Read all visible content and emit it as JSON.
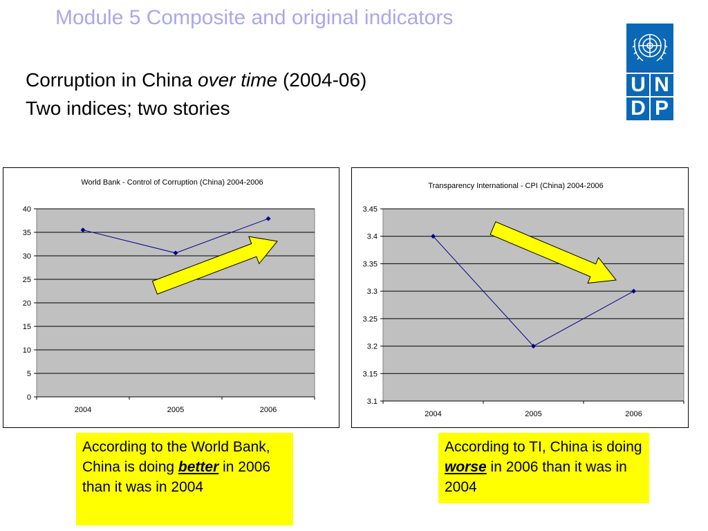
{
  "slide": {
    "module_title": "Module 5  Composite and original indicators",
    "heading_line1_a": "Corruption in China ",
    "heading_line1_em": "over time",
    "heading_line1_b": " (2004-06)",
    "heading_line2": "Two indices; two stories"
  },
  "logo": {
    "letters": [
      "U",
      "N",
      "D",
      "P"
    ],
    "color": "#0b68b6"
  },
  "chart_data": [
    {
      "type": "line",
      "title": "World Bank - Control of Corruption (China) 2004-2006",
      "categories": [
        "2004",
        "2005",
        "2006"
      ],
      "values": [
        35.5,
        30.6,
        37.9
      ],
      "ylim": [
        0,
        40
      ],
      "yticks": [
        "0",
        "5",
        "10",
        "15",
        "20",
        "25",
        "30",
        "35",
        "40"
      ],
      "grid": true,
      "line_color": "#00008b",
      "plot_background": "#c0c0c0",
      "arrow_direction": "up"
    },
    {
      "type": "line",
      "title": "Transparency International - CPI (China) 2004-2006",
      "categories": [
        "2004",
        "2005",
        "2006"
      ],
      "values": [
        3.4,
        3.2,
        3.3
      ],
      "ylim": [
        3.1,
        3.45
      ],
      "yticks": [
        "3.1",
        "3.15",
        "3.2",
        "3.25",
        "3.3",
        "3.35",
        "3.4",
        "3.45"
      ],
      "grid": true,
      "line_color": "#00008b",
      "plot_background": "#c0c0c0",
      "arrow_direction": "down"
    }
  ],
  "callouts": {
    "left": {
      "before": "According to the World Bank, China is doing ",
      "emphasis": "better",
      "after": " in 2006 than it was in 2004"
    },
    "right": {
      "before": "According to TI, China is doing ",
      "emphasis": "worse",
      "after": " in 2006 than it was in 2004"
    }
  }
}
